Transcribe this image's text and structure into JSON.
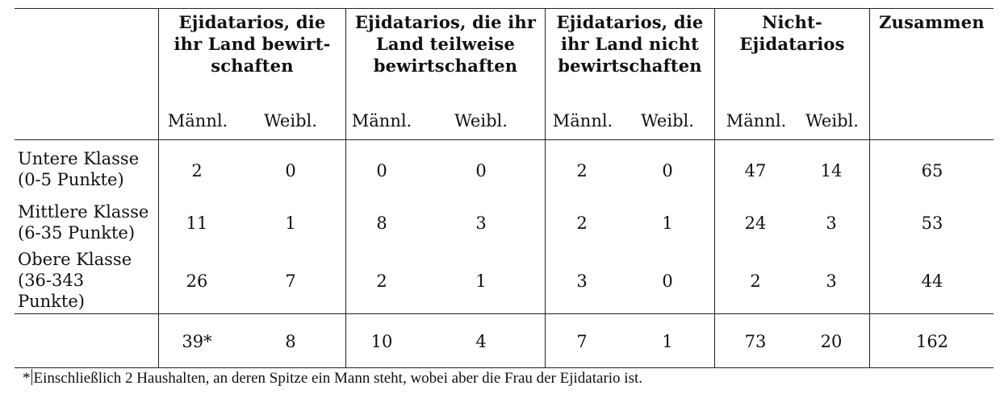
{
  "table": {
    "groups": [
      {
        "label": "Ejidatarios, die ihr Land bewirt-schaften",
        "lines": [
          "Ejidatarios, die",
          "ihr Land bewirt-",
          "schaften"
        ]
      },
      {
        "label": "Ejidatarios, die ihr Land teilweise bewirtschaften",
        "lines": [
          "Ejidatarios, die ihr",
          "Land teilweise",
          "bewirtschaften"
        ]
      },
      {
        "label": "Ejidatarios, die ihr Land nicht bewirtschaften",
        "lines": [
          "Ejidatarios, die",
          "ihr Land nicht",
          "bewirtschaften"
        ]
      },
      {
        "label": "Nicht-Ejidatarios",
        "lines": [
          "Nicht-",
          "Ejidatarios"
        ]
      },
      {
        "label": "Zusammen",
        "lines": [
          "Zusammen"
        ]
      }
    ],
    "subheaders": [
      "Männl.",
      "Weibl.",
      "Männl.",
      "Weibl.",
      "Männl.",
      "Weibl.",
      "Männl.",
      "Weibl."
    ],
    "rows": [
      {
        "label_lines": [
          "Untere Klasse",
          "(0-5 Punkte)"
        ],
        "values": [
          "2",
          "0",
          "0",
          "0",
          "2",
          "0",
          "47",
          "14",
          "65"
        ]
      },
      {
        "label_lines": [
          "Mittlere Klasse",
          "(6-35 Punkte)"
        ],
        "values": [
          "11",
          "1",
          "8",
          "3",
          "2",
          "1",
          "24",
          "3",
          "53"
        ]
      },
      {
        "label_lines": [
          "Obere Klasse",
          "(36-343",
          "Punkte)"
        ],
        "values": [
          "26",
          "7",
          "2",
          "1",
          "3",
          "0",
          "2",
          "3",
          "44"
        ]
      }
    ],
    "totals": {
      "values": [
        "39*",
        "8",
        "10",
        "4",
        "7",
        "1",
        "73",
        "20",
        "162"
      ]
    }
  },
  "footnote": {
    "marker": "*",
    "text": "Einschließlich 2 Haushalten, an deren Spitze ein Mann steht, wobei aber die Frau der Ejidatario ist."
  }
}
